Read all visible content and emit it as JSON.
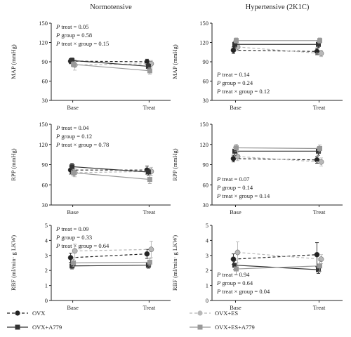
{
  "titles": [
    "Normotensive",
    "Hypertensive (2K1C)"
  ],
  "x_categories": [
    "Base",
    "Treat"
  ],
  "series_style": [
    {
      "name": "OVX",
      "color": "#222222",
      "marker": "circle",
      "dash": "4,3"
    },
    {
      "name": "OVX+ES",
      "color": "#b8b8b8",
      "marker": "circle",
      "dash": "4,3"
    },
    {
      "name": "OVX+A779",
      "color": "#333333",
      "marker": "square",
      "dash": ""
    },
    {
      "name": "OVX+ES+A779",
      "color": "#999999",
      "marker": "square",
      "dash": ""
    }
  ],
  "legend": [
    "OVX",
    "OVX+ES",
    "OVX+A779",
    "OVX+ES+A779"
  ],
  "chart_data": [
    {
      "type": "line",
      "title": "Normotensive",
      "ylabel": "MAP (mmHg)",
      "ylim": [
        30,
        150
      ],
      "yticks": [
        30,
        60,
        90,
        120,
        150
      ],
      "categories": [
        "Base",
        "Treat"
      ],
      "stats": [
        {
          "lead": "P",
          "rest": " treat = 0.05"
        },
        {
          "lead": "P",
          "rest": " group = 0.58"
        },
        {
          "lead": "P",
          "rest": " treat × group = 0.15"
        }
      ],
      "stats_pos": "top-left",
      "series": [
        {
          "name": "OVX",
          "values": [
            91,
            90
          ],
          "err": [
            4,
            4
          ]
        },
        {
          "name": "OVX+ES",
          "values": [
            85,
            87
          ],
          "err": [
            8,
            5
          ]
        },
        {
          "name": "OVX+A779",
          "values": [
            92,
            83
          ],
          "err": [
            4,
            4
          ]
        },
        {
          "name": "OVX+ES+A779",
          "values": [
            86,
            76
          ],
          "err": [
            4,
            5
          ]
        }
      ]
    },
    {
      "type": "line",
      "title": "Hypertensive (2K1C)",
      "ylabel": "MAP (mmHg)",
      "ylim": [
        30,
        150
      ],
      "yticks": [
        30,
        60,
        90,
        120,
        150
      ],
      "categories": [
        "Base",
        "Treat"
      ],
      "stats": [
        {
          "lead": "P",
          "rest": " treat = 0.14"
        },
        {
          "lead": "P",
          "rest": " group = 0.24"
        },
        {
          "lead": "P",
          "rest": " treat × group = 0.12"
        }
      ],
      "stats_pos": "bottom-left",
      "series": [
        {
          "name": "OVX",
          "values": [
            108,
            106
          ],
          "err": [
            5,
            5
          ]
        },
        {
          "name": "OVX+ES",
          "values": [
            113,
            103
          ],
          "err": [
            6,
            5
          ]
        },
        {
          "name": "OVX+A779",
          "values": [
            117,
            117
          ],
          "err": [
            5,
            5
          ]
        },
        {
          "name": "OVX+ES+A779",
          "values": [
            123,
            123
          ],
          "err": [
            4,
            4
          ]
        }
      ]
    },
    {
      "type": "line",
      "title": "",
      "ylabel": "RPP (mmHg)",
      "ylim": [
        30,
        150
      ],
      "yticks": [
        30,
        60,
        90,
        120,
        150
      ],
      "categories": [
        "Base",
        "Treat"
      ],
      "stats": [
        {
          "lead": "P",
          "rest": " treat = 0.04"
        },
        {
          "lead": "P",
          "rest": " group = 0.12"
        },
        {
          "lead": "P",
          "rest": " treat × group = 0.78"
        }
      ],
      "stats_pos": "top-left",
      "series": [
        {
          "name": "OVX",
          "values": [
            82,
            82
          ],
          "err": [
            6,
            6
          ]
        },
        {
          "name": "OVX+ES",
          "values": [
            78,
            80
          ],
          "err": [
            6,
            6
          ]
        },
        {
          "name": "OVX+A779",
          "values": [
            87,
            79
          ],
          "err": [
            5,
            5
          ]
        },
        {
          "name": "OVX+ES+A779",
          "values": [
            78,
            68
          ],
          "err": [
            5,
            6
          ]
        }
      ]
    },
    {
      "type": "line",
      "title": "",
      "ylabel": "RPP (mmHg)",
      "ylim": [
        30,
        150
      ],
      "yticks": [
        30,
        60,
        90,
        120,
        150
      ],
      "categories": [
        "Base",
        "Treat"
      ],
      "stats": [
        {
          "lead": "P",
          "rest": " treat = 0.07"
        },
        {
          "lead": "P",
          "rest": " group = 0.14"
        },
        {
          "lead": "P",
          "rest": " treat × group = 0.14"
        }
      ],
      "stats_pos": "bottom-left",
      "series": [
        {
          "name": "OVX",
          "values": [
            99,
            97
          ],
          "err": [
            5,
            5
          ]
        },
        {
          "name": "OVX+ES",
          "values": [
            102,
            94
          ],
          "err": [
            6,
            6
          ]
        },
        {
          "name": "OVX+A779",
          "values": [
            110,
            110
          ],
          "err": [
            6,
            6
          ]
        },
        {
          "name": "OVX+ES+A779",
          "values": [
            115,
            114
          ],
          "err": [
            5,
            5
          ]
        }
      ]
    },
    {
      "type": "line",
      "title": "",
      "ylabel": "RBF (ml/min· g LKW)",
      "ylim": [
        0,
        5
      ],
      "yticks": [
        0,
        1,
        2,
        3,
        4,
        5
      ],
      "categories": [
        "Base",
        "Treat"
      ],
      "stats": [
        {
          "lead": "P",
          "rest": " treat = 0.09"
        },
        {
          "lead": "P",
          "rest": " group = 0.33"
        },
        {
          "lead": "P",
          "rest": " treat × group = 0.64"
        }
      ],
      "stats_pos": "top-left",
      "series": [
        {
          "name": "OVX",
          "values": [
            2.85,
            3.1
          ],
          "err": [
            0.3,
            0.3
          ]
        },
        {
          "name": "OVX+ES",
          "values": [
            3.3,
            3.4
          ],
          "err": [
            0.45,
            0.55
          ]
        },
        {
          "name": "OVX+A779",
          "values": [
            2.3,
            2.35
          ],
          "err": [
            0.2,
            0.2
          ]
        },
        {
          "name": "OVX+ES+A779",
          "values": [
            2.5,
            2.55
          ],
          "err": [
            0.25,
            0.25
          ]
        }
      ]
    },
    {
      "type": "line",
      "title": "",
      "ylabel": "RBF (ml/min· g LKW)",
      "ylim": [
        0,
        5
      ],
      "yticks": [
        0,
        1,
        2,
        3,
        4,
        5
      ],
      "categories": [
        "Base",
        "Treat"
      ],
      "stats": [
        {
          "lead": "P",
          "rest": " treat = 0.94"
        },
        {
          "lead": "P",
          "rest": " group = 0.64"
        },
        {
          "lead": "P",
          "rest": " treat × group = 0.04"
        }
      ],
      "stats_pos": "bottom-left",
      "series": [
        {
          "name": "OVX",
          "values": [
            2.75,
            3.05
          ],
          "err": [
            0.35,
            0.8
          ]
        },
        {
          "name": "OVX+ES",
          "values": [
            3.2,
            2.75
          ],
          "err": [
            0.7,
            0.3
          ]
        },
        {
          "name": "OVX+A779",
          "values": [
            2.35,
            2.05
          ],
          "err": [
            0.3,
            0.25
          ]
        },
        {
          "name": "OVX+ES+A779",
          "values": [
            2.1,
            2.3
          ],
          "err": [
            0.4,
            0.35
          ]
        }
      ]
    }
  ]
}
